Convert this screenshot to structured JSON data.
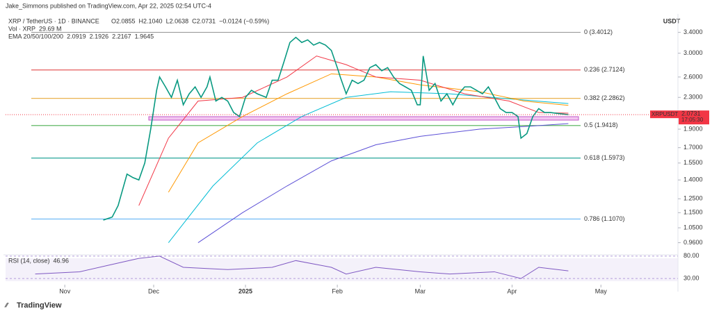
{
  "header": {
    "publisher": "Jake_Simmons published on TradingView.com, Apr 22, 2025 02:54 UTC-4",
    "symbol": "XRP / TetherUS · 1D · BINANCE",
    "ohlc": [
      "O2.0855",
      "H2.1040",
      "L2.0638",
      "C2.0731",
      "−0.0124 (−0.59%)"
    ],
    "volume": [
      "Vol · XRP",
      "29.69 M"
    ],
    "ema_title": "EMA 20/50/100/200",
    "ema_values": [
      "2.0919",
      "2.1926",
      "2.2167",
      "1.9645"
    ],
    "rsi_title": "RSI (14, close)",
    "rsi_value": "46.96",
    "currency": "USDT",
    "price_tag": [
      "XRPUSDT",
      "2.0731",
      "17:05:30"
    ],
    "brand": "TradingView"
  },
  "chart_data": {
    "type": "line",
    "log_scale": true,
    "xlim": [
      0,
      227
    ],
    "ylim": [
      0.9,
      3.8
    ],
    "xticks": [
      {
        "value": 20,
        "label": "Nov"
      },
      {
        "value": 50,
        "label": "Dec"
      },
      {
        "value": 81,
        "label": "2025"
      },
      {
        "value": 112,
        "label": "Feb"
      },
      {
        "value": 140,
        "label": "Mar"
      },
      {
        "value": 171,
        "label": "Apr"
      },
      {
        "value": 201,
        "label": "May"
      }
    ],
    "yticks": [
      {
        "value": 3.4,
        "label": "3.4000"
      },
      {
        "value": 3,
        "label": "3.0000"
      },
      {
        "value": 2.6,
        "label": "2.6000"
      },
      {
        "value": 2.3,
        "label": "2.3000"
      },
      {
        "value": 1.9,
        "label": "1.9000"
      },
      {
        "value": 1.7,
        "label": "1.7000"
      },
      {
        "value": 1.55,
        "label": "1.5500"
      },
      {
        "value": 1.4,
        "label": "1.4000"
      },
      {
        "value": 1.25,
        "label": "1.2500"
      },
      {
        "value": 1.15,
        "label": "1.1500"
      },
      {
        "value": 1.05,
        "label": "1.0500"
      },
      {
        "value": 0.96,
        "label": "0.9600"
      }
    ],
    "series": [
      {
        "name": "XRPUSDT",
        "color": "#089981",
        "x": [
          33,
          36,
          38,
          41,
          43,
          45,
          47,
          49,
          51,
          52,
          54,
          56,
          58,
          60,
          62,
          64,
          66,
          68,
          69,
          71,
          73,
          75,
          77,
          79,
          81,
          83,
          85,
          88,
          90,
          92,
          94,
          96,
          98,
          100,
          102,
          104,
          106,
          108,
          110,
          112,
          113,
          115,
          117,
          119,
          121,
          123,
          125,
          127,
          129,
          131,
          133,
          135,
          137,
          139,
          140,
          141,
          143,
          145,
          147,
          149,
          151,
          153,
          155,
          157,
          159,
          161,
          163,
          165,
          167,
          169,
          171,
          173,
          174,
          176,
          178,
          180,
          182,
          184,
          186,
          190
        ],
        "values": [
          1.1,
          1.12,
          1.2,
          1.45,
          1.42,
          1.4,
          1.55,
          1.9,
          2.4,
          2.6,
          2.45,
          2.3,
          2.55,
          2.2,
          2.35,
          2.45,
          2.3,
          2.45,
          2.6,
          2.25,
          2.3,
          2.25,
          2.1,
          2.05,
          2.3,
          2.4,
          2.35,
          2.3,
          2.55,
          2.55,
          2.85,
          3.2,
          3.3,
          3.2,
          3.25,
          3.15,
          3.2,
          3.15,
          3.05,
          2.75,
          2.6,
          2.35,
          2.55,
          2.5,
          2.55,
          2.75,
          2.8,
          2.7,
          2.75,
          2.6,
          2.5,
          2.45,
          2.4,
          2.2,
          2.2,
          2.95,
          2.4,
          2.5,
          2.25,
          2.35,
          2.2,
          2.35,
          2.45,
          2.45,
          2.4,
          2.35,
          2.45,
          2.3,
          2.15,
          2.1,
          2.1,
          2.05,
          1.8,
          1.85,
          2.05,
          2.15,
          2.1,
          2.1,
          2.09,
          2.0731
        ]
      },
      {
        "name": "EMA 20",
        "color": "#f23645",
        "x": [
          45,
          55,
          65,
          80,
          95,
          105,
          115,
          125,
          140,
          155,
          170,
          180,
          190
        ],
        "values": [
          1.2,
          1.8,
          2.25,
          2.3,
          2.6,
          2.95,
          2.8,
          2.6,
          2.55,
          2.35,
          2.25,
          2.1,
          2.0919
        ]
      },
      {
        "name": "EMA 50",
        "color": "#ff9800",
        "x": [
          55,
          65,
          80,
          95,
          110,
          125,
          140,
          160,
          175,
          190
        ],
        "values": [
          1.3,
          1.75,
          2.05,
          2.35,
          2.65,
          2.6,
          2.48,
          2.38,
          2.25,
          2.1926
        ]
      },
      {
        "name": "EMA 100",
        "color": "#00bcd4",
        "x": [
          55,
          70,
          85,
          100,
          115,
          130,
          150,
          170,
          190
        ],
        "values": [
          0.96,
          1.35,
          1.75,
          2.05,
          2.3,
          2.38,
          2.35,
          2.28,
          2.2167
        ]
      },
      {
        "name": "EMA 200",
        "color": "#5b4fd6",
        "x": [
          65,
          80,
          95,
          110,
          125,
          140,
          160,
          175,
          190
        ],
        "values": [
          0.96,
          1.15,
          1.35,
          1.57,
          1.73,
          1.82,
          1.9,
          1.93,
          1.9645
        ]
      }
    ],
    "levels": [
      {
        "label": "0 (3.4012)",
        "value": 3.4012,
        "color": "#999999"
      },
      {
        "label": "0.236 (2.7124)",
        "value": 2.7124,
        "color": "#e55a5a"
      },
      {
        "label": "0.382 (2.2862)",
        "value": 2.2862,
        "color": "#e8a93a"
      },
      {
        "label": "0.5 (1.9418)",
        "value": 1.9418,
        "color": "#4caf50"
      },
      {
        "label": "0.618 (1.5973)",
        "value": 1.5973,
        "color": "#26a69a"
      },
      {
        "label": "0.786 (1.1070)",
        "value": 1.107,
        "color": "#64b5f6"
      }
    ],
    "rsi": {
      "ylim": [
        24,
        86
      ],
      "yticks": [
        {
          "value": 80,
          "label": "80.00"
        },
        {
          "value": 30,
          "label": "30.00"
        }
      ],
      "color": "#7e57c2",
      "x": [
        10,
        25,
        35,
        45,
        52,
        60,
        75,
        90,
        98,
        110,
        115,
        125,
        140,
        150,
        165,
        174,
        180,
        190
      ],
      "values": [
        40,
        45,
        60,
        75,
        80,
        55,
        50,
        55,
        70,
        55,
        40,
        55,
        45,
        40,
        45,
        30,
        55,
        47
      ]
    }
  }
}
